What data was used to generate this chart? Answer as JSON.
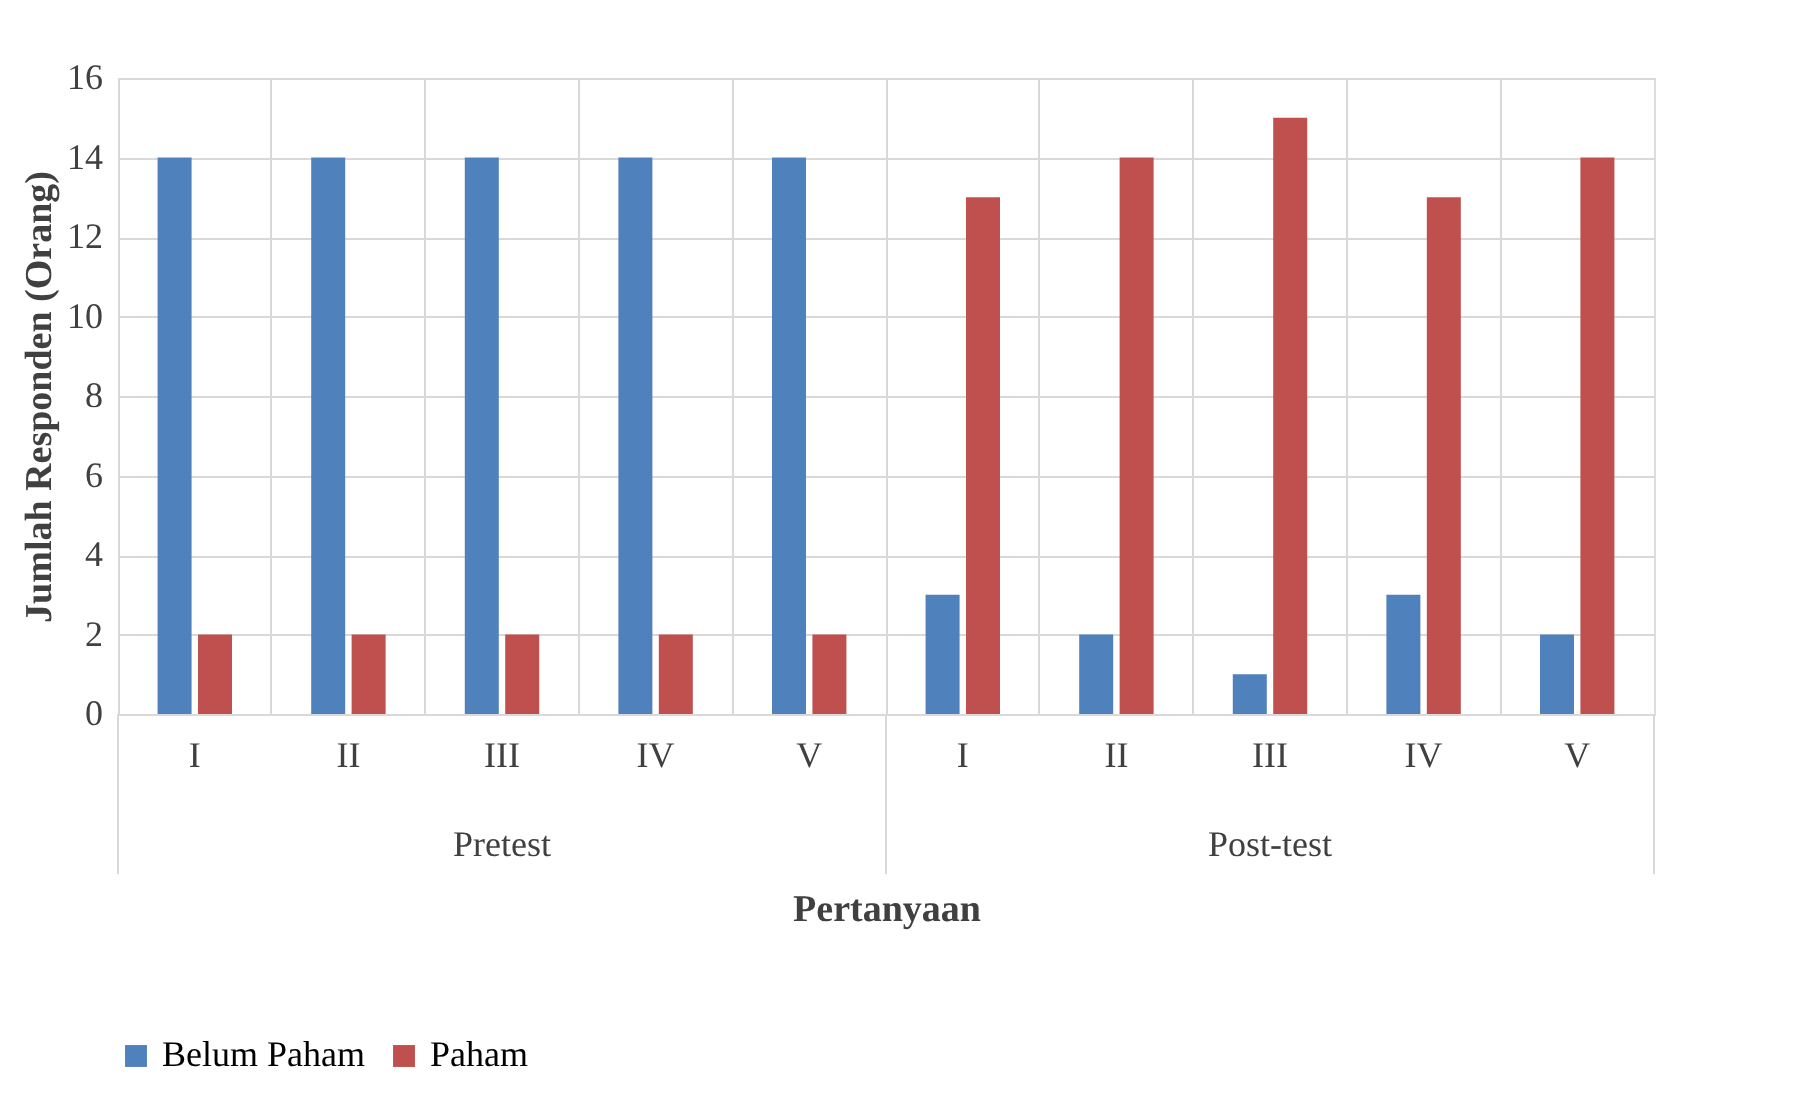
{
  "chart_data": {
    "type": "bar",
    "categories": [
      "I",
      "II",
      "III",
      "IV",
      "V",
      "I",
      "II",
      "III",
      "IV",
      "V"
    ],
    "annotations": [
      "Pretest",
      "Post-test"
    ],
    "series": [
      {
        "name": "Belum Paham",
        "color": "#4f81bd",
        "values": [
          14,
          14,
          14,
          14,
          14,
          3,
          2,
          1,
          3,
          2
        ]
      },
      {
        "name": "Paham",
        "color": "#c0504d",
        "values": [
          2,
          2,
          2,
          2,
          2,
          13,
          14,
          15,
          13,
          14
        ]
      }
    ],
    "xlabel": "Pertanyaan",
    "ylabel": "Jumlah Responden (Orang)",
    "ylim": [
      0,
      16
    ],
    "yticks": [
      0,
      2,
      4,
      6,
      8,
      10,
      12,
      14,
      16
    ],
    "grid": true,
    "legend": "bottom"
  }
}
